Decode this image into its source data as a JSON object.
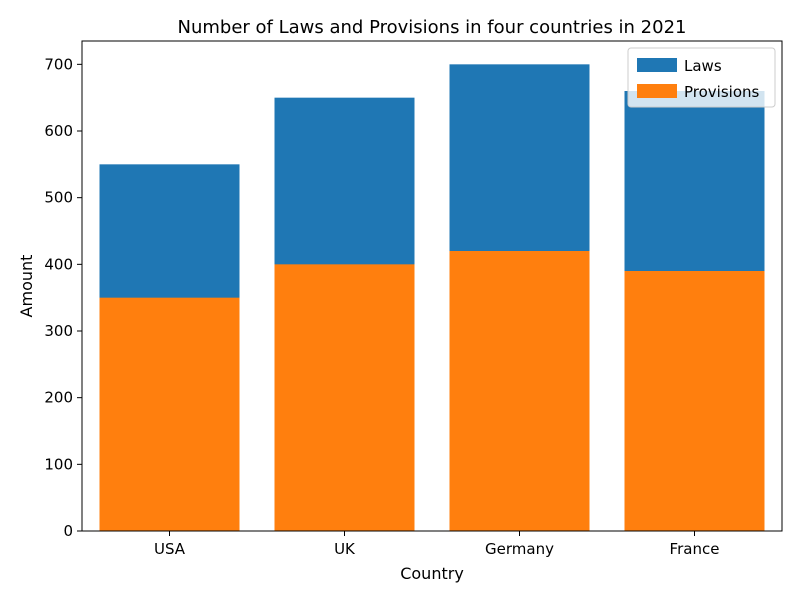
{
  "chart_data": {
    "type": "bar",
    "title": "Number of Laws and Provisions in four countries in 2021",
    "xlabel": "Country",
    "ylabel": "Amount",
    "categories": [
      "USA",
      "UK",
      "Germany",
      "France"
    ],
    "series": [
      {
        "name": "Laws",
        "values": [
          550,
          650,
          700,
          660
        ],
        "color": "#1f77b4"
      },
      {
        "name": "Provisions",
        "values": [
          350,
          400,
          420,
          390
        ],
        "color": "#ff7f0e"
      }
    ],
    "ylim": [
      0,
      735
    ],
    "yticks": [
      0,
      100,
      200,
      300,
      400,
      500,
      600,
      700
    ],
    "grid": false,
    "legend_position": "top-right",
    "overlap": true
  }
}
